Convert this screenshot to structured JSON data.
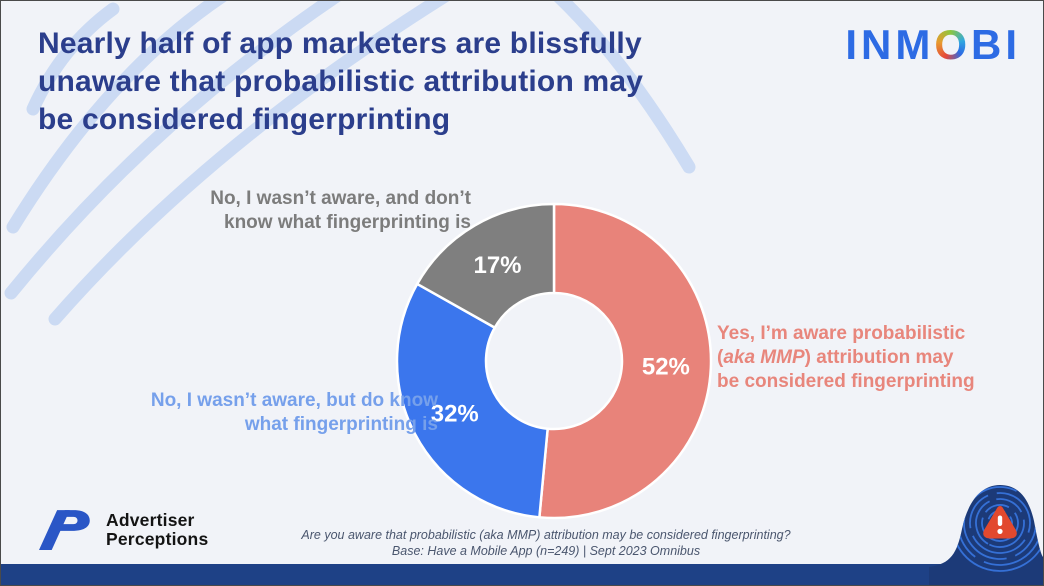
{
  "header": {
    "title_lines": [
      "Nearly half of app marketers are blissfully",
      "unaware that probabilistic attribution may",
      "be considered fingerprinting"
    ],
    "brand": {
      "pre": "INM",
      "o": "O",
      "post": "BI"
    }
  },
  "chart_data": {
    "type": "pie",
    "donut": true,
    "start_angle": "top",
    "direction": "clockwise",
    "inner_radius_ratio": 0.43,
    "slices": [
      {
        "id": "yes-aware",
        "label": "Yes, I’m aware probabilistic (aka MMP) attribution may be considered fingerprinting",
        "value": 52,
        "display": "52%",
        "color": "#E8837A"
      },
      {
        "id": "no-but-know",
        "label": "No, I wasn’t aware, but do know what fingerprinting is",
        "value": 32,
        "display": "32%",
        "color": "#3B76ED"
      },
      {
        "id": "no-dont-know",
        "label": "No, I wasn’t aware, and don’t know what fingerprinting is",
        "value": 17,
        "display": "17%",
        "color": "#7F7F7F"
      }
    ]
  },
  "callouts": {
    "no_dont_know": {
      "lines": [
        "No, I wasn’t aware, and don’t",
        "know what fingerprinting is"
      ],
      "color": "#7C7C7C"
    },
    "no_but_know": {
      "lines": [
        "No, I wasn’t aware, but do know",
        "what fingerprinting is"
      ],
      "color": "#76A0EB"
    },
    "yes_aware": {
      "line1": "Yes, I’m aware probabilistic",
      "line2_prefix": "(",
      "line2_italic": "aka MMP",
      "line2_suffix": ") attribution may",
      "line3": "be considered fingerprinting",
      "color": "#E8867C"
    }
  },
  "footer": {
    "ap_logo": {
      "monogram": "AP",
      "name_lines": [
        "Advertiser",
        "Perceptions"
      ]
    },
    "question": "Are you aware that probabilistic (aka MMP) attribution may be considered fingerprinting?",
    "base": "Base: Have a Mobile App (n=249) | Sept 2023 Omnibus"
  },
  "colors": {
    "background": "#F1F3F8",
    "title": "#2B3E8C",
    "bottom_bar": "#1E4186",
    "accent_blue": "#2D6BE4",
    "deco_arcs": "#C9D9F3",
    "warning_red": "#E2492E"
  }
}
